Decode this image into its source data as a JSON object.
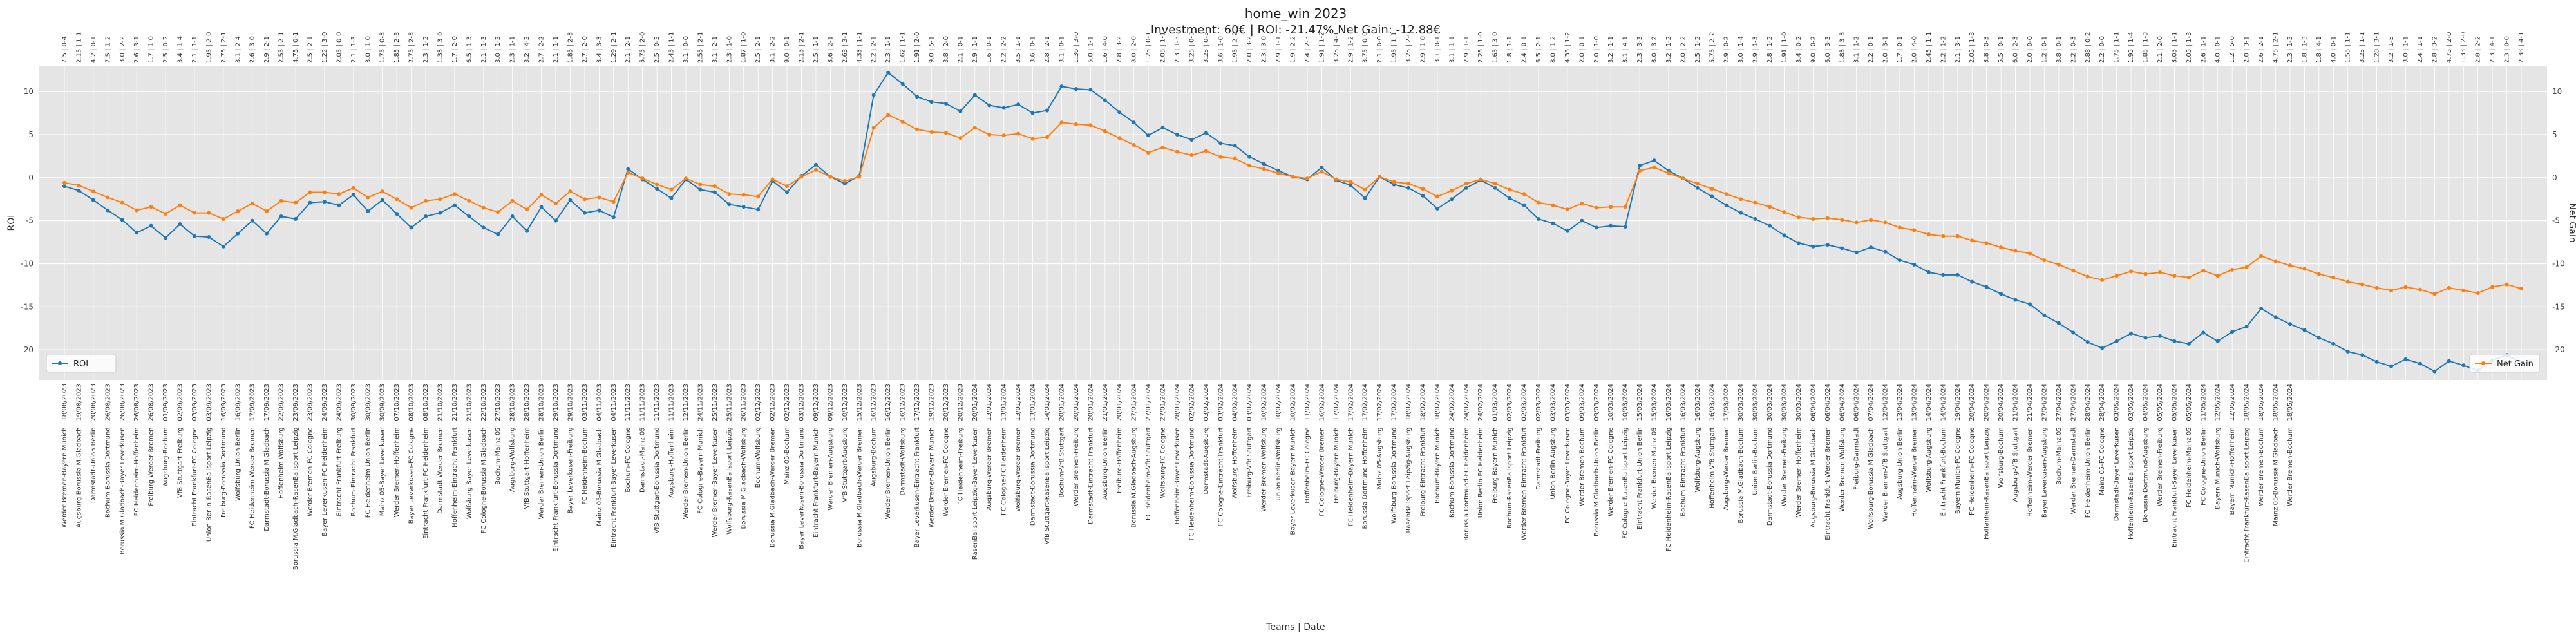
{
  "chart_data": {
    "type": "line",
    "title": "home_win 2023",
    "subtitle": "Investment: 60€ | ROI: -21.47% Net Gain: -12.88€",
    "xlabel": "Teams | Date",
    "ylabel_left": "ROI",
    "ylabel_right": "Net Gain",
    "ylim": [
      -23.5,
      13
    ],
    "yticks": [
      -20,
      -15,
      -10,
      -5,
      0,
      5,
      10
    ],
    "grid": true,
    "legend": [
      {
        "name": "ROI",
        "position": "left",
        "color": "#1f77b4"
      },
      {
        "name": "Net Gain",
        "position": "right",
        "color": "#ff7f0e"
      }
    ],
    "x_top_labels": [
      "7.5 | 0-4",
      "2.15 | 1-1",
      "4.2 | 0-1",
      "7.5 | 1-2",
      "3.0 | 2-2",
      "2.6 | 3-1",
      "1.7 | 1-0",
      "2.5 | 0-2",
      "3.4 | 1-4",
      "2.1 | 1-1",
      "1.95 | 2-0",
      "2.75 | 2-1",
      "3.1 | 2-4",
      "2.6 | 3-0",
      "2.9 | 2-1",
      "2.55 | 2-1",
      "4.75 | 0-1",
      "2.5 | 2-1",
      "1.22 | 3-0",
      "2.05 | 0-0",
      "2.1 | 1-3",
      "3.0 | 1-0",
      "1.75 | 0-3",
      "1.85 | 2-3",
      "2.75 | 2-3",
      "2.3 | 1-2",
      "1.33 | 3-0",
      "1.7 | 2-0",
      "6.5 | 1-3",
      "2.1 | 1-3",
      "3.0 | 1-3",
      "2.3 | 1-1",
      "3.2 | 4-3",
      "2.7 | 2-2",
      "2.1 | 1-1",
      "1.85 | 2-3",
      "2.7 | 2-0",
      "3.4 | 3-3",
      "1.29 | 2-1",
      "2.1 | 2-1",
      "5.75 | 2-0",
      "2.5 | 0-3",
      "2.45 | 1-1",
      "3.1 | 0-0",
      "2.55 | 2-1",
      "3.1 | 2-1",
      "2.3 | 1-0",
      "1.87 | 1-0",
      "2.5 | 2-1",
      "3.1 | 2-2",
      "9.0 | 0-1",
      "2.15 | 2-1",
      "2.5 | 1-1",
      "3.6 | 2-1",
      "2.63 | 3-1",
      "4.33 | 1-1",
      "2.2 | 2-1",
      "2.3 | 1-1",
      "1.62 | 1-1",
      "1.91 | 2-0",
      "9.0 | 5-1",
      "3.8 | 2-0",
      "2.1 | 0-1",
      "2.9 | 1-1",
      "1.6 | 0-1",
      "2.2 | 2-2",
      "3.5 | 1-1",
      "3.6 | 0-1",
      "2.8 | 2-1",
      "3.1 | 0-1",
      "1.36 | 3-0",
      "5.0 | 1-1",
      "1.6 | 4-0",
      "2.8 | 3-2",
      "8.0 | 2-0",
      "1.25 | 0-1",
      "2.05 | 1-1",
      "2.3 | 1-3",
      "3.25 | 0-3",
      "3.25 | 0-3",
      "3.6 | 1-0",
      "1.95 | 2-2",
      "2.0 | 3-2",
      "2.3 | 3-0",
      "2.9 | 1-1",
      "1.9 | 2-2",
      "2.4 | 2-3",
      "1.91 | 1-2",
      "3.25 | 4-1",
      "2.9 | 1-2",
      "3.75 | 0-0",
      "2.1 | 0-0",
      "1.95 | 1-1",
      "3.25 | 2-0",
      "2.9 | 1-0",
      "3.1 | 0-1",
      "3.1 | 1-1",
      "2.9 | 1-1",
      "2.25 | 1-0",
      "1.65 | 3-0",
      "1.8 | 1-1",
      "2.4 | 0-1",
      "6.5 | 2-1",
      "8.0 | 1-2",
      "4.33 | 1-2",
      "2.0 | 0-1",
      "2.0 | 1-0",
      "3.2 | 1-1",
      "3.1 | 4-1",
      "2.3 | 3-3",
      "8.0 | 3-2",
      "3.2 | 1-2",
      "2.0 | 2-2",
      "2.5 | 1-2",
      "5.75 | 2-2",
      "2.9 | 0-2",
      "3.0 | 1-4",
      "2.9 | 1-3",
      "2.8 | 1-2",
      "1.91 | 1-0",
      "3.4 | 0-2",
      "9.0 | 0-2",
      "6.0 | 3-3",
      "1.83 | 3-3",
      "3.1 | 1-2",
      "2.2 | 0-1",
      "2.0 | 3-1",
      "1.7 | 0-1",
      "2.0 | 4-0",
      "2.45 | 1-1",
      "2.2 | 1-2",
      "2.1 | 3-1",
      "2.05 | 1-3",
      "3.8 | 0-3",
      "5.5 | 0-1",
      "6.0 | 2-3",
      "2.0 | 0-0",
      "1.2 | 0-1",
      "3.8 | 0-1",
      "2.2 | 0-3",
      "2.88 | 0-2",
      "2.2 | 0-0",
      "1.75 | 1-1",
      "1.95 | 1-4",
      "1.85 | 1-3",
      "2.1 | 2-0",
      "3.05 | 1-1",
      "2.05 | 1-3",
      "2.6 | 1-1",
      "4.0 | 0-1",
      "1.2 | 5-0",
      "2.0 | 3-1",
      "2.6 | 2-1",
      "4.75 | 2-1",
      "2.3 | 1-3",
      "1.8 | 1-3",
      "1.8 | 4-1",
      "4.0 | 0-1",
      "1.55 | 1-1",
      "3.25 | 1-1",
      "1.28 | 3-1",
      "3.2 | 1-5",
      "3.0 | 1-1",
      "2.4 | 1-1",
      "2.8 | 3-2",
      "4.75 | 2-0",
      "1.33 | 2-0",
      "2.8 | 2-2",
      "2.3 | 4-1",
      "2.3 | 0-0",
      "2.38 | 4-1",
      "3.2 | 1-3"
    ],
    "x_bottom_labels": [
      "Werder Bremen-Bayern Munich | 18/08/2023",
      "Augsburg-Borussia M.Gladbach | 19/08/2023",
      "Darmstadt-Union Berlin | 20/08/2023",
      "Bochum-Borussia Dortmund | 26/08/2023",
      "Borussia M.Gladbach-Bayer Leverkusen | 26/08/2023",
      "FC Heidenheim-Hoffenheim | 26/08/2023",
      "Freiburg-Werder Bremen | 26/08/2023",
      "Augsburg-Bochum | 01/09/2023",
      "VfB Stuttgart-Freiburg | 02/09/2023",
      "Eintracht Frankfurt-FC Cologne | 03/09/2023",
      "Union Berlin-RasenBallsport Leipzig | 03/09/2023",
      "Freiburg-Borussia Dortmund | 16/09/2023",
      "Wolfsburg-Union Berlin | 16/09/2023",
      "FC Heidenheim-Werder Bremen | 17/09/2023",
      "Darmstadt-Borussia M.Gladbach | 17/09/2023",
      "Hoffenheim-Wolfsburg | 22/09/2023",
      "Borussia M.Gladbach-RasenBallsport Leipzig | 23/09/2023",
      "Werder Bremen-FC Cologne | 23/09/2023",
      "Bayer Leverkusen-FC Heidenheim | 24/09/2023",
      "Eintracht Frankfurt-Freiburg | 24/09/2023",
      "Bochum-Eintracht Frankfurt | 30/09/2023",
      "FC Heidenheim-Union Berlin | 30/09/2023",
      "Mainz 05-Bayer Leverkusen | 30/09/2023",
      "Werder Bremen-Hoffenheim | 07/10/2023",
      "Bayer Leverkusen-FC Cologne | 08/10/2023",
      "Eintracht Frankfurt-FC Heidenheim | 08/10/2023",
      "Darmstadt-Werder Bremen | 21/10/2023",
      "Hoffenheim-Eintracht Frankfurt | 21/10/2023",
      "Wolfsburg-Bayer Leverkusen | 21/10/2023",
      "FC Cologne-Borussia M.Gladbach | 22/10/2023",
      "Bochum-Mainz 05 | 27/10/2023",
      "Augsburg-Wolfsburg | 28/10/2023",
      "VfB Stuttgart-Hoffenheim | 28/10/2023",
      "Werder Bremen-Union Berlin | 28/10/2023",
      "Eintracht Frankfurt-Borussia Dortmund | 29/10/2023",
      "Bayer Leverkusen-Freiburg | 29/10/2023",
      "FC Heidenheim-Bochum | 03/11/2023",
      "Mainz 05-Borussia M.Gladbach | 04/11/2023",
      "Eintracht Frankfurt-Bayer Leverkusen | 04/11/2023",
      "Bochum-FC Cologne | 11/11/2023",
      "Darmstadt-Mainz 05 | 11/11/2023",
      "VfB Stuttgart-Borussia Dortmund | 11/11/2023",
      "Augsburg-Hoffenheim | 11/11/2023",
      "Werder Bremen-Union Berlin | 12/11/2023",
      "FC Cologne-Bayern Munich | 24/11/2023",
      "Werder Bremen-Bayer Leverkusen | 25/11/2023",
      "Wolfsburg-RasenBallsport Leipzig | 25/11/2023",
      "Borussia M.Gladbach-Wolfsburg | 26/11/2023",
      "Bochum-Wolfsburg | 02/12/2023",
      "Borussia M.Gladbach-Werder Bremen | 02/12/2023",
      "Mainz 05-Bochum | 02/12/2023",
      "Bayer Leverkusen-Borussia Dortmund | 03/12/2023",
      "Eintracht Frankfurt-Bayern Munich | 09/12/2023",
      "Werder Bremen-Augsburg | 09/12/2023",
      "VfB Stuttgart-Augsburg | 10/12/2023",
      "Borussia M.Gladbach-Werder Bremen | 15/12/2023",
      "Augsburg-Bochum | 16/12/2023",
      "Werder Bremen-Union Berlin | 16/12/2023",
      "Darmstadt-Wolfsburg | 16/12/2023",
      "Bayer Leverkusen-Eintracht Frankfurt | 17/12/2023",
      "Werder Bremen-Bayern Munich | 19/12/2023",
      "Werder Bremen-FC Cologne | 20/12/2023",
      "FC Heidenheim-Freiburg | 20/12/2023",
      "RasenBallsport Leipzig-Bayer Leverkusen | 20/01/2024",
      "Augsburg-Werder Bremen | 13/01/2024",
      "FC Cologne-FC Heidenheim | 13/01/2024",
      "Wolfsburg-Werder Bremen | 13/01/2024",
      "Darmstadt-Borussia Dortmund | 13/01/2024",
      "VfB Stuttgart-RasenBallsport Leipzig | 14/01/2024",
      "Bochum-VfB Stuttgart | 20/01/2024",
      "Werder Bremen-Freiburg | 20/01/2024",
      "Darmstadt-Eintracht Frankfurt | 20/01/2024",
      "Augsburg-Union Berlin | 21/01/2024",
      "Freiburg-Hoffenheim | 20/01/2024",
      "Borussia M.Gladbach-Augsburg | 27/01/2024",
      "FC Heidenheim-VfB Stuttgart | 27/01/2024",
      "Wolfsburg-FC Cologne | 27/01/2024",
      "Hoffenheim-Bayer Leverkusen | 28/01/2024",
      "FC Heidenheim-Borussia Dortmund | 02/02/2024",
      "Darmstadt-Augsburg | 03/02/2024",
      "FC Cologne-Eintracht Frankfurt | 03/02/2024",
      "Wolfsburg-Hoffenheim | 04/02/2024",
      "Freiburg-VfB Stuttgart | 03/02/2024",
      "Werder Bremen-Wolfsburg | 10/02/2024",
      "Union Berlin-Wolfsburg | 10/02/2024",
      "Bayer Leverkusen-Bayern Munich | 10/02/2024",
      "Hoffenheim-FC Cologne | 11/02/2024",
      "FC Cologne-Werder Bremen | 16/02/2024",
      "Freiburg-Bayern Munich | 17/02/2024",
      "FC Heidenheim-Bayern Munich | 17/02/2024",
      "Borussia Dortmund-Hoffenheim | 17/02/2024",
      "Mainz 05-Augsburg | 17/02/2024",
      "Wolfsburg-Borussia Dortmund | 17/02/2024",
      "RasenBallsport Leipzig-Augsburg | 18/02/2024",
      "Freiburg-Eintracht Frankfurt | 18/02/2024",
      "Bochum-Bayern Munich | 18/02/2024",
      "Bochum-Borussia Dortmund | 24/02/2024",
      "Borussia Dortmund-FC Heidenheim | 24/02/2024",
      "Union Berlin-FC Heidenheim | 24/02/2024",
      "Freiburg-Bayern Munich | 01/03/2024",
      "Bochum-RasenBallsport Leipzig | 02/03/2024",
      "Werder Bremen-Eintracht Frankfurt | 02/03/2024",
      "Darmstadt-Freiburg | 02/03/2024",
      "Union Berlin-Augsburg | 03/03/2024",
      "FC Cologne-Bayer Leverkusen | 03/03/2024",
      "Werder Bremen-Bochum | 09/03/2024",
      "Borussia M.Gladbach-Union Berlin | 09/03/2024",
      "Werder Bremen-FC Cologne | 10/03/2024",
      "FC Cologne-RasenBallsport Leipzig | 10/03/2024",
      "Eintracht Frankfurt-Union Berlin | 15/03/2024",
      "Werder Bremen-Mainz 05 | 15/03/2024",
      "FC Heidenheim-RasenBallsport Leipzig | 16/03/2024",
      "Bochum-Eintracht Frankfurt | 16/03/2024",
      "Wolfsburg-Augsburg | 16/03/2024",
      "Hoffenheim-VfB Stuttgart | 16/03/2024",
      "Augsburg-Werder Bremen | 17/03/2024",
      "Borussia M.Gladbach-Bochum | 30/03/2024",
      "Union Berlin-Bochum | 30/03/2024",
      "Darmstadt-Borussia Dortmund | 30/03/2024",
      "Werder Bremen-Freiburg | 30/03/2024",
      "Werder Bremen-Hoffenheim | 30/03/2024",
      "Augsburg-Borussia M.Gladbach | 06/04/2024",
      "Eintracht Frankfurt-Werder Bremen | 06/04/2024",
      "Werder Bremen-Wolfsburg | 06/04/2024",
      "Freiburg-Darmstadt | 06/04/2024",
      "Wolfsburg-Borussia M.Gladbach | 07/04/2024",
      "Werder Bremen-VfB Stuttgart | 12/04/2024",
      "Augsburg-Union Berlin | 13/04/2024",
      "Hoffenheim-Werder Bremen | 13/04/2024",
      "Wolfsburg-Augsburg | 14/04/2024",
      "Eintracht Frankfurt-Bochum | 14/04/2024",
      "Bayern Munich-FC Cologne | 19/04/2024",
      "FC Heidenheim-FC Cologne | 20/04/2024",
      "Hoffenheim-RasenBallsport Leipzig | 20/04/2024",
      "Wolfsburg-Bochum | 20/04/2024",
      "Augsburg-VfB Stuttgart | 21/04/2024",
      "Hoffenheim-Werder Bremen | 21/04/2024",
      "Bayer Leverkusen-Augsburg | 27/04/2024",
      "Bochum-Mainz 05 | 27/04/2024",
      "Werder Bremen-Darmstadt | 27/04/2024",
      "FC Heidenheim-Union Berlin | 28/04/2024",
      "Mainz 05-FC Cologne | 28/04/2024",
      "Darmstadt-Bayer Leverkusen | 03/05/2024",
      "Hoffenheim-RasenBallsport Leipzig | 03/05/2024",
      "Borussia Dortmund-Augsburg | 04/05/2024",
      "Werder Bremen-Freiburg | 05/05/2024",
      "Eintracht Frankfurt-Bayer Leverkusen | 05/05/2024",
      "FC Heidenheim-Mainz 05 | 05/05/2024",
      "FC Cologne-Union Berlin | 11/05/2024",
      "Bayern Munich-Wolfsburg | 12/05/2024",
      "Bayern Munich-Hoffenheim | 12/05/2024",
      "Eintracht Frankfurt-RasenBallsport Leipzig | 18/05/2024",
      "Werder Bremen-Bochum | 18/05/2024",
      "Mainz 05-Borussia M.Gladbach | 18/05/2024",
      "Werder Bremen-Bochum | 18/05/2024"
    ],
    "series": [
      {
        "name": "ROI",
        "color": "#1f77b4",
        "values": [
          -1.0,
          -1.5,
          -2.6,
          -3.8,
          -4.9,
          -6.4,
          -5.6,
          -7.0,
          -5.4,
          -6.8,
          -6.9,
          -8.0,
          -6.5,
          -5.0,
          -6.5,
          -4.5,
          -4.8,
          -2.9,
          -2.8,
          -3.2,
          -2.0,
          -3.9,
          -2.6,
          -4.2,
          -5.8,
          -4.5,
          -4.1,
          -3.2,
          -4.5,
          -5.8,
          -6.6,
          -4.5,
          -6.2,
          -3.4,
          -5.0,
          -2.6,
          -4.1,
          -3.8,
          -4.6,
          1.0,
          -0.2,
          -1.3,
          -2.4,
          -0.2,
          -1.4,
          -1.7,
          -3.1,
          -3.4,
          -3.7,
          -0.4,
          -1.7,
          0.2,
          1.5,
          0.1,
          -0.7,
          0.2,
          9.6,
          12.2,
          10.9,
          9.4,
          8.8,
          8.6,
          7.7,
          9.6,
          8.4,
          8.1,
          8.5,
          7.5,
          7.8,
          10.6,
          10.3,
          10.2,
          9.0,
          7.6,
          6.4,
          4.9,
          5.8,
          5.0,
          4.4,
          5.2,
          4.0,
          3.7,
          2.4,
          1.6,
          0.8,
          0.1,
          -0.2,
          1.2,
          -0.3,
          -0.9,
          -2.4,
          0.1,
          -0.8,
          -1.2,
          -2.1,
          -3.6,
          -2.5,
          -1.2,
          -0.3,
          -1.2,
          -2.4,
          -3.2,
          -4.8,
          -5.3,
          -6.2,
          -5.0,
          -5.8,
          -5.6,
          -5.7,
          1.4,
          2.0,
          0.8,
          -0.1,
          -1.2,
          -2.2,
          -3.2,
          -4.1,
          -4.8,
          -5.6,
          -6.7,
          -7.6,
          -8.0,
          -7.8,
          -8.2,
          -8.7,
          -8.1,
          -8.6,
          -9.6,
          -10.1,
          -11.0,
          -11.3,
          -11.3,
          -12.1,
          -12.7,
          -13.5,
          -14.2,
          -14.7,
          -16.0,
          -16.9,
          -18.0,
          -19.1,
          -19.8,
          -19.0,
          -18.1,
          -18.6,
          -18.4,
          -19.0,
          -19.3,
          -18.0,
          -19.0,
          -17.9,
          -17.3,
          -15.2,
          -16.2,
          -17.0,
          -17.7,
          -18.6,
          -19.3,
          -20.2,
          -20.6,
          -21.4,
          -21.9,
          -21.1,
          -21.6,
          -22.5,
          -21.3,
          -21.8,
          -22.4,
          -21.2,
          -20.6,
          -21.5
        ]
      },
      {
        "name": "Net Gain",
        "color": "#ff7f0e",
        "values": [
          -0.6,
          -0.9,
          -1.6,
          -2.3,
          -2.9,
          -3.8,
          -3.4,
          -4.2,
          -3.2,
          -4.1,
          -4.1,
          -4.8,
          -3.9,
          -3.0,
          -3.9,
          -2.7,
          -2.9,
          -1.7,
          -1.7,
          -1.9,
          -1.2,
          -2.3,
          -1.6,
          -2.5,
          -3.5,
          -2.7,
          -2.5,
          -1.9,
          -2.7,
          -3.5,
          -4.0,
          -2.7,
          -3.7,
          -2.0,
          -3.0,
          -1.6,
          -2.5,
          -2.3,
          -2.8,
          0.6,
          -0.1,
          -0.8,
          -1.4,
          -0.1,
          -0.8,
          -1.0,
          -1.9,
          -2.0,
          -2.2,
          -0.2,
          -1.0,
          0.1,
          0.9,
          0.1,
          -0.4,
          0.1,
          5.8,
          7.3,
          6.5,
          5.6,
          5.3,
          5.2,
          4.6,
          5.8,
          5.0,
          4.9,
          5.1,
          4.5,
          4.7,
          6.4,
          6.2,
          6.1,
          5.4,
          4.6,
          3.8,
          2.9,
          3.5,
          3.0,
          2.6,
          3.1,
          2.4,
          2.2,
          1.4,
          1.0,
          0.5,
          0.1,
          -0.1,
          0.7,
          -0.2,
          -0.5,
          -1.4,
          0.1,
          -0.5,
          -0.7,
          -1.3,
          -2.2,
          -1.5,
          -0.7,
          -0.2,
          -0.7,
          -1.4,
          -1.9,
          -2.9,
          -3.2,
          -3.7,
          -3.0,
          -3.5,
          -3.4,
          -3.4,
          0.8,
          1.2,
          0.5,
          -0.1,
          -0.7,
          -1.3,
          -1.9,
          -2.5,
          -2.9,
          -3.4,
          -4.0,
          -4.6,
          -4.8,
          -4.7,
          -4.9,
          -5.2,
          -4.9,
          -5.2,
          -5.8,
          -6.1,
          -6.6,
          -6.8,
          -6.8,
          -7.3,
          -7.6,
          -8.1,
          -8.5,
          -8.8,
          -9.6,
          -10.1,
          -10.8,
          -11.5,
          -11.9,
          -11.4,
          -10.9,
          -11.2,
          -11.0,
          -11.4,
          -11.6,
          -10.8,
          -11.4,
          -10.7,
          -10.4,
          -9.1,
          -9.7,
          -10.2,
          -10.6,
          -11.2,
          -11.6,
          -12.1,
          -12.4,
          -12.8,
          -13.1,
          -12.7,
          -13.0,
          -13.5,
          -12.8,
          -13.1,
          -13.4,
          -12.7,
          -12.4,
          -12.9
        ]
      }
    ]
  }
}
